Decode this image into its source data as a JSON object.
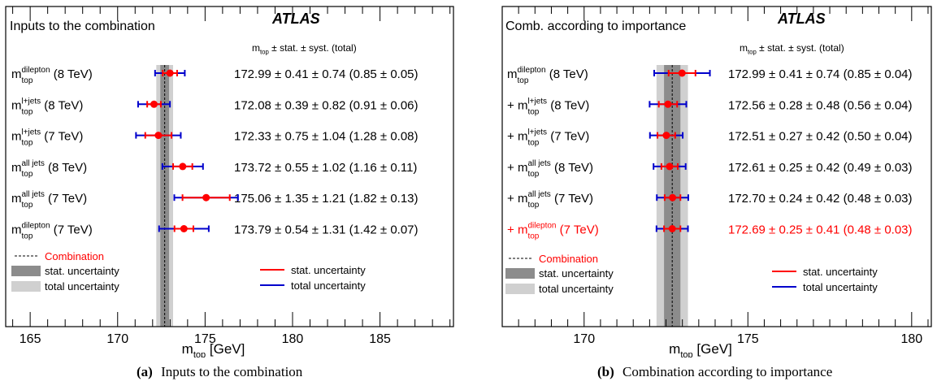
{
  "chart_data": [
    {
      "type": "scatter",
      "panel_label": "(a)",
      "caption": "Inputs to the combination",
      "title": "Inputs to the combination",
      "experiment": "ATLAS",
      "column_header": {
        "base": "m",
        "sub": "top",
        "rest": "  ±  stat.  ±  syst.  (total)"
      },
      "xlabel": {
        "base": "m",
        "sub": "top",
        "rest": " [GeV]"
      },
      "xlim": [
        163.6,
        189.2
      ],
      "xticks": [
        "165",
        "170",
        "175",
        "180",
        "185"
      ],
      "xtick_values": [
        165,
        170,
        175,
        180,
        185
      ],
      "minor_step": 1,
      "combination": {
        "value": 172.69,
        "stat": 0.25,
        "total": 0.48
      },
      "series": [
        {
          "prefix": "",
          "sup": "dilepton",
          "energy": " (8 TeV)",
          "value": 172.99,
          "stat": 0.41,
          "total": 0.85,
          "text": "172.99 ± 0.41 ± 0.74 (0.85 ± 0.05)"
        },
        {
          "prefix": "",
          "sup": "l+jets",
          "energy": " (8 TeV)",
          "value": 172.08,
          "stat": 0.39,
          "total": 0.91,
          "text": "172.08 ± 0.39 ± 0.82 (0.91 ± 0.06)"
        },
        {
          "prefix": "",
          "sup": "l+jets",
          "energy": " (7 TeV)",
          "value": 172.33,
          "stat": 0.75,
          "total": 1.28,
          "text": "172.33 ± 0.75 ± 1.04 (1.28 ± 0.08)"
        },
        {
          "prefix": "",
          "sup": "all jets",
          "energy": " (8 TeV)",
          "value": 173.72,
          "stat": 0.55,
          "total": 1.16,
          "text": "173.72 ± 0.55 ± 1.02 (1.16 ± 0.11)"
        },
        {
          "prefix": "",
          "sup": "all jets",
          "energy": " (7 TeV)",
          "value": 175.06,
          "stat": 1.35,
          "total": 1.82,
          "text": "175.06 ± 1.35 ± 1.21 (1.82 ± 0.13)"
        },
        {
          "prefix": "",
          "sup": "dilepton",
          "energy": " (7 TeV)",
          "value": 173.79,
          "stat": 0.54,
          "total": 1.42,
          "text": "173.79 ± 0.54 ± 1.31 (1.42 ± 0.07)"
        }
      ],
      "legend": {
        "combination": "Combination",
        "stat_band": "stat. uncertainty",
        "total_band": "total uncertainty",
        "stat_line": "stat. uncertainty",
        "total_line": "total uncertainty"
      }
    },
    {
      "type": "scatter",
      "panel_label": "(b)",
      "caption": "Combination according to importance",
      "title": "Comb. according to importance",
      "experiment": "ATLAS",
      "column_header": {
        "base": "m",
        "sub": "top",
        "rest": "  ±  stat.  ±  syst.  (total)"
      },
      "xlabel": {
        "base": "m",
        "sub": "top",
        "rest": " [GeV]"
      },
      "xlim": [
        167.5,
        180.6
      ],
      "xticks": [
        "170",
        "175",
        "180"
      ],
      "xtick_values": [
        170,
        175,
        180
      ],
      "minor_step": 0.5,
      "combination": {
        "value": 172.69,
        "stat": 0.25,
        "total": 0.48
      },
      "series": [
        {
          "prefix": "",
          "sup": "dilepton",
          "energy": " (8 TeV)",
          "value": 172.99,
          "stat": 0.41,
          "total": 0.85,
          "text": "172.99 ± 0.41 ± 0.74 (0.85 ± 0.04)"
        },
        {
          "prefix": "+ ",
          "sup": "l+jets",
          "energy": " (8 TeV)",
          "value": 172.56,
          "stat": 0.28,
          "total": 0.56,
          "text": "172.56 ± 0.28 ± 0.48 (0.56 ± 0.04)"
        },
        {
          "prefix": "+ ",
          "sup": "l+jets",
          "energy": " (7 TeV)",
          "value": 172.51,
          "stat": 0.27,
          "total": 0.5,
          "text": "172.51 ± 0.27 ± 0.42 (0.50 ± 0.04)"
        },
        {
          "prefix": "+ ",
          "sup": "all jets",
          "energy": " (8 TeV)",
          "value": 172.61,
          "stat": 0.25,
          "total": 0.49,
          "text": "172.61 ± 0.25 ± 0.42 (0.49 ± 0.03)"
        },
        {
          "prefix": "+ ",
          "sup": "all jets",
          "energy": " (7 TeV)",
          "value": 172.7,
          "stat": 0.24,
          "total": 0.48,
          "text": "172.70 ± 0.24 ± 0.42 (0.48 ± 0.03)"
        },
        {
          "prefix": "+ ",
          "sup": "dilepton",
          "energy": " (7 TeV)",
          "value": 172.69,
          "stat": 0.25,
          "total": 0.48,
          "text": "172.69 ± 0.25 ± 0.41 (0.48 ± 0.03)",
          "highlight": true
        }
      ],
      "legend": {
        "combination": "Combination",
        "stat_band": "stat. uncertainty",
        "total_band": "total uncertainty",
        "stat_line": "stat. uncertainty",
        "total_line": "total uncertainty"
      }
    }
  ],
  "colors": {
    "stat": "#ff0000",
    "total": "#0000cc",
    "marker": "#ff0000",
    "combination_text": "#ff0000",
    "stat_band": "#8c8c8c",
    "total_band": "#d0d0d0",
    "highlight_text": "#ff0000"
  }
}
